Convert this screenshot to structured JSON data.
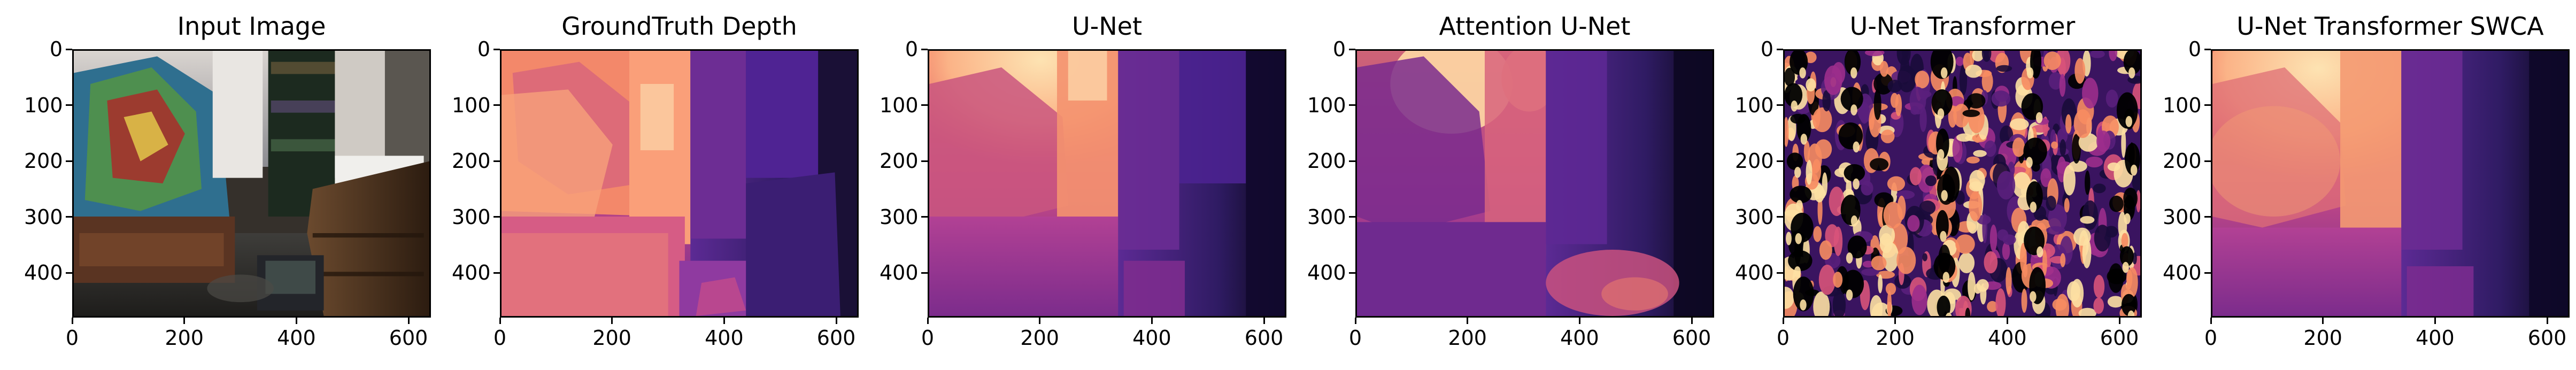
{
  "figure": {
    "panels": [
      {
        "title": "Input Image",
        "kind": "photo"
      },
      {
        "title": "GroundTruth Depth",
        "kind": "depth_gt"
      },
      {
        "title": "U-Net",
        "kind": "depth_smooth"
      },
      {
        "title": "Attention U-Net",
        "kind": "depth_attention"
      },
      {
        "title": "U-Net Transformer",
        "kind": "depth_noisy"
      },
      {
        "title": "U-Net Transformer SWCA",
        "kind": "depth_swca"
      }
    ],
    "x_ticks": [
      "0",
      "200",
      "400",
      "600"
    ],
    "y_ticks": [
      "0",
      "100",
      "200",
      "300",
      "400"
    ],
    "colormap": "magma"
  }
}
